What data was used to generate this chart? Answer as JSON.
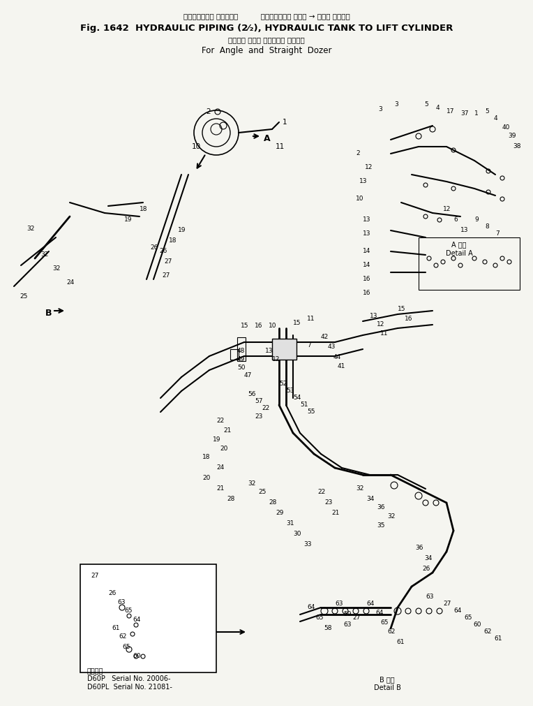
{
  "title_japanese_line1": "ハイドロリック パイピング          ハイドロリック タンク → リフト シリンダ",
  "title_line1": "Fig. 1642  HYDRAULIC PIPING (2⁄₂), HYDRAULIC TANK TO LIFT CYLINDER",
  "title_japanese_line2": "アングル および ストレート ドーザ用",
  "title_line2": "For  Angle  and  Straight  Dozer",
  "bg_color": "#f5f5f0",
  "text_color": "#000000",
  "detail_a_japanese": "A 詳細",
  "detail_a": "Detail A",
  "detail_b_japanese": "B 詳細",
  "detail_b": "Detail B",
  "serial_japanese": "適用番号",
  "serial_line1": "D60P   Serial No. 20006-",
  "serial_line2": "D60PL  Serial No. 21081-",
  "arrow_label_a": "A",
  "arrow_label_b": "B"
}
